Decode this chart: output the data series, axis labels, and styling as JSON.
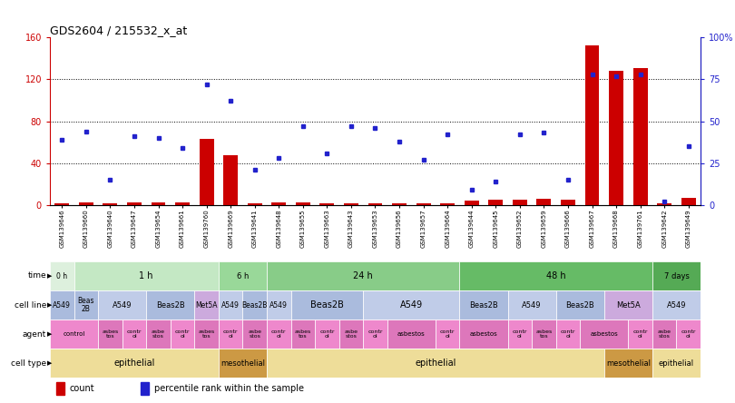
{
  "title": "GDS2604 / 215532_x_at",
  "samples": [
    "GSM139646",
    "GSM139660",
    "GSM139640",
    "GSM139647",
    "GSM139654",
    "GSM139661",
    "GSM139760",
    "GSM139669",
    "GSM139641",
    "GSM139648",
    "GSM139655",
    "GSM139663",
    "GSM139643",
    "GSM139653",
    "GSM139656",
    "GSM139657",
    "GSM139664",
    "GSM139644",
    "GSM139645",
    "GSM139652",
    "GSM139659",
    "GSM139666",
    "GSM139667",
    "GSM139668",
    "GSM139761",
    "GSM139642",
    "GSM139649"
  ],
  "counts": [
    2,
    3,
    2,
    3,
    3,
    3,
    63,
    48,
    2,
    3,
    3,
    2,
    2,
    2,
    2,
    2,
    2,
    4,
    5,
    5,
    6,
    5,
    152,
    128,
    131,
    2,
    7
  ],
  "percentile": [
    39,
    44,
    15,
    41,
    40,
    34,
    72,
    62,
    21,
    28,
    47,
    31,
    47,
    46,
    38,
    27,
    42,
    9,
    14,
    42,
    43,
    15,
    78,
    77,
    78,
    2,
    35
  ],
  "time_groups": [
    {
      "label": "0 h",
      "start": 0,
      "end": 1,
      "color": "#ddf0dd"
    },
    {
      "label": "1 h",
      "start": 1,
      "end": 7,
      "color": "#c4e8c4"
    },
    {
      "label": "6 h",
      "start": 7,
      "end": 9,
      "color": "#99d899"
    },
    {
      "label": "24 h",
      "start": 9,
      "end": 17,
      "color": "#88cc88"
    },
    {
      "label": "48 h",
      "start": 17,
      "end": 25,
      "color": "#66bb66"
    },
    {
      "label": "7 days",
      "start": 25,
      "end": 27,
      "color": "#55aa55"
    }
  ],
  "cell_line_groups": [
    {
      "label": "A549",
      "start": 0,
      "end": 1,
      "color": "#aabbdd"
    },
    {
      "label": "Beas\n2B",
      "start": 1,
      "end": 2,
      "color": "#aabbdd"
    },
    {
      "label": "A549",
      "start": 2,
      "end": 4,
      "color": "#c0cce8"
    },
    {
      "label": "Beas2B",
      "start": 4,
      "end": 6,
      "color": "#aabbdd"
    },
    {
      "label": "Met5A",
      "start": 6,
      "end": 7,
      "color": "#ccaadd"
    },
    {
      "label": "A549",
      "start": 7,
      "end": 8,
      "color": "#c0cce8"
    },
    {
      "label": "Beas2B",
      "start": 8,
      "end": 9,
      "color": "#aabbdd"
    },
    {
      "label": "A549",
      "start": 9,
      "end": 10,
      "color": "#c0cce8"
    },
    {
      "label": "Beas2B",
      "start": 10,
      "end": 13,
      "color": "#aabbdd"
    },
    {
      "label": "A549",
      "start": 13,
      "end": 17,
      "color": "#c0cce8"
    },
    {
      "label": "Beas2B",
      "start": 17,
      "end": 19,
      "color": "#aabbdd"
    },
    {
      "label": "A549",
      "start": 19,
      "end": 21,
      "color": "#c0cce8"
    },
    {
      "label": "Beas2B",
      "start": 21,
      "end": 23,
      "color": "#aabbdd"
    },
    {
      "label": "Met5A",
      "start": 23,
      "end": 25,
      "color": "#ccaadd"
    },
    {
      "label": "A549",
      "start": 25,
      "end": 27,
      "color": "#c0cce8"
    }
  ],
  "agent_groups": [
    {
      "label": "control",
      "start": 0,
      "end": 2,
      "color": "#ee88cc"
    },
    {
      "label": "asbes\ntos",
      "start": 2,
      "end": 3,
      "color": "#dd77bb"
    },
    {
      "label": "contr\nol",
      "start": 3,
      "end": 4,
      "color": "#ee88cc"
    },
    {
      "label": "asbe\nstos",
      "start": 4,
      "end": 5,
      "color": "#dd77bb"
    },
    {
      "label": "contr\nol",
      "start": 5,
      "end": 6,
      "color": "#ee88cc"
    },
    {
      "label": "asbes\ntos",
      "start": 6,
      "end": 7,
      "color": "#dd77bb"
    },
    {
      "label": "contr\nol",
      "start": 7,
      "end": 8,
      "color": "#ee88cc"
    },
    {
      "label": "asbe\nstos",
      "start": 8,
      "end": 9,
      "color": "#dd77bb"
    },
    {
      "label": "contr\nol",
      "start": 9,
      "end": 10,
      "color": "#ee88cc"
    },
    {
      "label": "asbes\ntos",
      "start": 10,
      "end": 11,
      "color": "#dd77bb"
    },
    {
      "label": "contr\nol",
      "start": 11,
      "end": 12,
      "color": "#ee88cc"
    },
    {
      "label": "asbe\nstos",
      "start": 12,
      "end": 13,
      "color": "#dd77bb"
    },
    {
      "label": "contr\nol",
      "start": 13,
      "end": 14,
      "color": "#ee88cc"
    },
    {
      "label": "asbestos",
      "start": 14,
      "end": 16,
      "color": "#dd77bb"
    },
    {
      "label": "contr\nol",
      "start": 16,
      "end": 17,
      "color": "#ee88cc"
    },
    {
      "label": "asbestos",
      "start": 17,
      "end": 19,
      "color": "#dd77bb"
    },
    {
      "label": "contr\nol",
      "start": 19,
      "end": 20,
      "color": "#ee88cc"
    },
    {
      "label": "asbes\ntos",
      "start": 20,
      "end": 21,
      "color": "#dd77bb"
    },
    {
      "label": "contr\nol",
      "start": 21,
      "end": 22,
      "color": "#ee88cc"
    },
    {
      "label": "asbestos",
      "start": 22,
      "end": 24,
      "color": "#dd77bb"
    },
    {
      "label": "contr\nol",
      "start": 24,
      "end": 25,
      "color": "#ee88cc"
    },
    {
      "label": "asbe\nstos",
      "start": 25,
      "end": 26,
      "color": "#dd77bb"
    },
    {
      "label": "contr\nol",
      "start": 26,
      "end": 27,
      "color": "#ee88cc"
    }
  ],
  "cell_type_groups": [
    {
      "label": "epithelial",
      "start": 0,
      "end": 7,
      "color": "#eedd99"
    },
    {
      "label": "mesothelial",
      "start": 7,
      "end": 9,
      "color": "#cc9944"
    },
    {
      "label": "epithelial",
      "start": 9,
      "end": 23,
      "color": "#eedd99"
    },
    {
      "label": "mesothelial",
      "start": 23,
      "end": 25,
      "color": "#cc9944"
    },
    {
      "label": "epithelial",
      "start": 25,
      "end": 27,
      "color": "#eedd99"
    }
  ],
  "ylim_left": [
    0,
    160
  ],
  "ylim_right": [
    0,
    100
  ],
  "yticks_left": [
    0,
    40,
    80,
    120,
    160
  ],
  "yticks_right": [
    0,
    25,
    50,
    75,
    100
  ],
  "ytick_labels_left": [
    "0",
    "40",
    "80",
    "120",
    "160"
  ],
  "ytick_labels_right": [
    "0",
    "25",
    "50",
    "75",
    "100%"
  ],
  "bar_color": "#cc0000",
  "dot_color": "#2222cc",
  "header_row_labels": [
    "time",
    "cell line",
    "agent",
    "cell type"
  ]
}
